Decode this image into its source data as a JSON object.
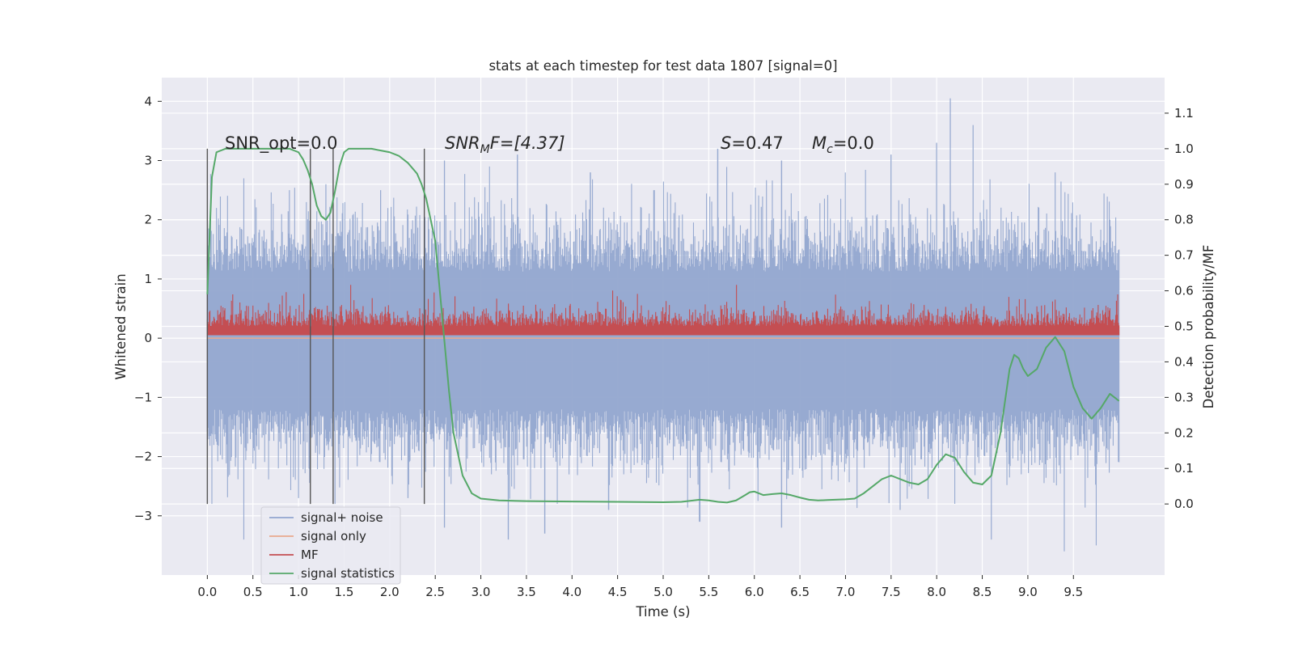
{
  "chart_data": {
    "type": "line",
    "title": "stats at each timestep for test data 1807 [signal=0]",
    "xlabel": "Time (s)",
    "ylabel": "Whitened strain",
    "ylabel_right": "Detection probability/MF",
    "xlim": [
      -0.5,
      10.5
    ],
    "ylim": [
      -4.0,
      4.4
    ],
    "ylim_right": [
      -0.2,
      1.2
    ],
    "x_ticks": [
      "0.0",
      "0.5",
      "1.0",
      "1.5",
      "2.0",
      "2.5",
      "3.0",
      "3.5",
      "4.0",
      "4.5",
      "5.0",
      "5.5",
      "6.0",
      "6.5",
      "7.0",
      "7.5",
      "8.0",
      "8.5",
      "9.0",
      "9.5"
    ],
    "y_ticks": [
      "4",
      "3",
      "2",
      "1",
      "0",
      "−1",
      "−2",
      "−3"
    ],
    "y_ticks_right": [
      "1.1",
      "1.0",
      "0.9",
      "0.8",
      "0.7",
      "0.6",
      "0.5",
      "0.4",
      "0.3",
      "0.2",
      "0.1",
      "0.0"
    ],
    "grid": true,
    "legend_position": "lower-left",
    "annotations": {
      "snr_opt": "SNR_opt=0.0",
      "snr_mf_symbol": "SNR",
      "snr_mf_subscript": "M",
      "snr_mf_tail": "F=[4.37]",
      "s_symbol": "S",
      "s_value": "=0.47",
      "mc_symbol": "M",
      "mc_subscript": "c",
      "mc_value": "=0.0"
    },
    "vlines": [
      0.0,
      1.13,
      1.38,
      2.38
    ],
    "vline_range": [
      -2.8,
      3.2
    ],
    "series": [
      {
        "name": "signal+ noise",
        "axis": "left",
        "color": "#92a6cf",
        "band_center": 0.0,
        "band_peaks_upper": [
          [
            0.1,
            2.2
          ],
          [
            0.4,
            2.7
          ],
          [
            0.9,
            2.5
          ],
          [
            1.3,
            2.6
          ],
          [
            1.9,
            2.5
          ],
          [
            2.6,
            3.0
          ],
          [
            3.4,
            3.1
          ],
          [
            4.2,
            2.8
          ],
          [
            4.9,
            2.5
          ],
          [
            5.6,
            3.2
          ],
          [
            6.3,
            3.0
          ],
          [
            7.5,
            3.1
          ],
          [
            8.0,
            3.3
          ],
          [
            8.15,
            4.05
          ],
          [
            8.4,
            3.6
          ],
          [
            9.3,
            2.8
          ],
          [
            9.9,
            2.0
          ]
        ],
        "band_peaks_lower": [
          [
            0.05,
            -2.8
          ],
          [
            0.4,
            -3.4
          ],
          [
            1.0,
            -2.7
          ],
          [
            1.4,
            -2.8
          ],
          [
            2.2,
            -2.7
          ],
          [
            2.6,
            -3.2
          ],
          [
            3.3,
            -3.4
          ],
          [
            3.7,
            -3.3
          ],
          [
            4.4,
            -2.9
          ],
          [
            5.4,
            -3.1
          ],
          [
            6.3,
            -3.2
          ],
          [
            7.6,
            -2.9
          ],
          [
            8.6,
            -3.4
          ],
          [
            9.4,
            -3.6
          ],
          [
            9.75,
            -3.5
          ]
        ],
        "typical_upper": 1.5,
        "typical_lower": -1.6
      },
      {
        "name": "signal only",
        "axis": "left",
        "color": "#e9a98d",
        "x": [
          0.0,
          10.0
        ],
        "y": [
          0.0,
          0.0
        ]
      },
      {
        "name": "MF",
        "axis": "left",
        "color": "#c44e52",
        "band_base": 0.05,
        "typical_upper": 0.5,
        "max": 0.9
      },
      {
        "name": "signal statistics",
        "axis": "right",
        "color": "#55a868",
        "x": [
          0.0,
          0.05,
          0.1,
          0.2,
          0.3,
          0.5,
          0.7,
          0.9,
          1.0,
          1.05,
          1.1,
          1.15,
          1.2,
          1.25,
          1.3,
          1.35,
          1.4,
          1.45,
          1.5,
          1.55,
          1.6,
          1.7,
          1.8,
          2.0,
          2.1,
          2.2,
          2.3,
          2.35,
          2.4,
          2.5,
          2.55,
          2.6,
          2.65,
          2.7,
          2.8,
          2.9,
          3.0,
          3.2,
          3.5,
          4.0,
          4.5,
          5.0,
          5.2,
          5.4,
          5.5,
          5.6,
          5.7,
          5.8,
          5.9,
          5.95,
          6.0,
          6.1,
          6.2,
          6.3,
          6.4,
          6.5,
          6.6,
          6.7,
          6.8,
          7.0,
          7.1,
          7.2,
          7.3,
          7.4,
          7.5,
          7.6,
          7.7,
          7.8,
          7.9,
          8.0,
          8.1,
          8.2,
          8.3,
          8.4,
          8.5,
          8.6,
          8.7,
          8.8,
          8.85,
          8.9,
          8.95,
          9.0,
          9.1,
          9.2,
          9.3,
          9.4,
          9.5,
          9.6,
          9.7,
          9.8,
          9.9,
          10.0
        ],
        "y": [
          0.59,
          0.92,
          0.99,
          1.0,
          1.0,
          1.0,
          1.0,
          1.0,
          0.99,
          0.97,
          0.94,
          0.9,
          0.84,
          0.81,
          0.8,
          0.82,
          0.88,
          0.95,
          0.99,
          1.0,
          1.0,
          1.0,
          1.0,
          0.99,
          0.98,
          0.96,
          0.93,
          0.9,
          0.86,
          0.74,
          0.6,
          0.46,
          0.32,
          0.2,
          0.08,
          0.03,
          0.015,
          0.01,
          0.008,
          0.007,
          0.006,
          0.005,
          0.006,
          0.012,
          0.01,
          0.006,
          0.004,
          0.01,
          0.025,
          0.033,
          0.035,
          0.025,
          0.028,
          0.03,
          0.025,
          0.018,
          0.012,
          0.01,
          0.011,
          0.013,
          0.015,
          0.03,
          0.05,
          0.07,
          0.08,
          0.07,
          0.06,
          0.055,
          0.07,
          0.11,
          0.14,
          0.13,
          0.09,
          0.06,
          0.055,
          0.08,
          0.2,
          0.38,
          0.42,
          0.41,
          0.38,
          0.36,
          0.38,
          0.44,
          0.47,
          0.43,
          0.33,
          0.27,
          0.24,
          0.27,
          0.31,
          0.29
        ]
      }
    ]
  }
}
